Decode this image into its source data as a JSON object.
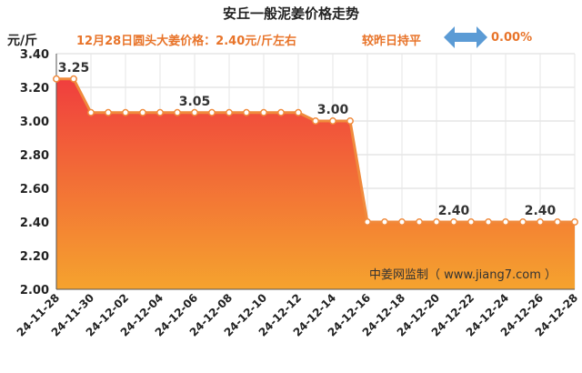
{
  "header": {
    "title": "安丘一般泥姜价格走势",
    "unit": "元/斤",
    "info": "12月28日圆头大姜价格：2.40元/斤左右",
    "compare": "较昨日持平",
    "change": "0.00%",
    "watermark": "中姜网监制（ www.jiang7.com ）"
  },
  "colors": {
    "line": "#f08a3c",
    "fill_top": "#f03e3e",
    "fill_bottom": "#f5a32e",
    "arrow": "#5b9bd5",
    "accent_text": "#e8742a"
  },
  "chart_data": {
    "type": "area",
    "title": "安丘一般泥姜价格走势",
    "ylabel": "元/斤",
    "xlabel": "",
    "ylim": [
      2.0,
      3.4
    ],
    "yticks": [
      "2.00",
      "2.20",
      "2.40",
      "2.60",
      "2.80",
      "3.00",
      "3.20",
      "3.40"
    ],
    "grid": true,
    "x": [
      "24-11-28",
      "24-11-29",
      "24-11-30",
      "24-12-01",
      "24-12-02",
      "24-12-03",
      "24-12-04",
      "24-12-05",
      "24-12-06",
      "24-12-07",
      "24-12-08",
      "24-12-09",
      "24-12-10",
      "24-12-11",
      "24-12-12",
      "24-12-13",
      "24-12-14",
      "24-12-15",
      "24-12-16",
      "24-12-17",
      "24-12-18",
      "24-12-19",
      "24-12-20",
      "24-12-21",
      "24-12-22",
      "24-12-23",
      "24-12-24",
      "24-12-25",
      "24-12-26",
      "24-12-27",
      "24-12-28"
    ],
    "xtick_labels": [
      "24-11-28",
      "24-11-30",
      "24-12-02",
      "24-12-04",
      "24-12-06",
      "24-12-08",
      "24-12-10",
      "24-12-12",
      "24-12-14",
      "24-12-16",
      "24-12-18",
      "24-12-20",
      "24-12-22",
      "24-12-24",
      "24-12-26",
      "24-12-28"
    ],
    "values": [
      3.25,
      3.25,
      3.05,
      3.05,
      3.05,
      3.05,
      3.05,
      3.05,
      3.05,
      3.05,
      3.05,
      3.05,
      3.05,
      3.05,
      3.05,
      3.0,
      3.0,
      3.0,
      2.4,
      2.4,
      2.4,
      2.4,
      2.4,
      2.4,
      2.4,
      2.4,
      2.4,
      2.4,
      2.4,
      2.4,
      2.4
    ],
    "data_labels": [
      {
        "x": "24-11-29",
        "text": "3.25"
      },
      {
        "x": "24-12-06",
        "text": "3.05"
      },
      {
        "x": "24-12-14",
        "text": "3.00"
      },
      {
        "x": "24-12-21",
        "text": "2.40"
      },
      {
        "x": "24-12-26",
        "text": "2.40"
      }
    ]
  }
}
